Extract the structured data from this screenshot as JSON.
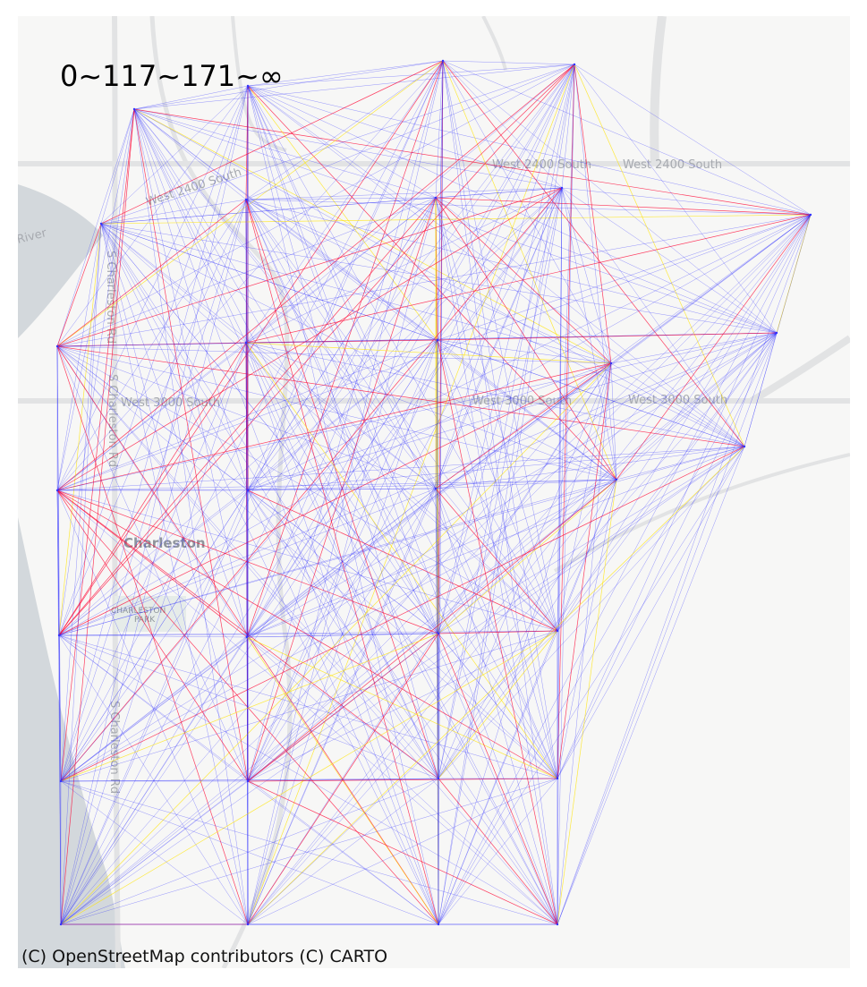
{
  "legend_text": "0~117~171~∞",
  "attribution": "(C) OpenStreetMap contributors (C) CARTO",
  "basemap": {
    "road_labels": [
      "West 2400 South",
      "West 2400 South",
      "West 2400 South",
      "West 3000 South",
      "West 3000 South",
      "West 3000 South",
      "S Charleston Rd",
      "S Charleston Rd",
      "S Charleston Rd"
    ],
    "place_labels": [
      "Charleston"
    ],
    "park_labels": [
      "CHARLESTON",
      "PARK"
    ],
    "water_labels": [
      "River"
    ],
    "colors": {
      "background": "#f7f7f6",
      "water": "#d3d8dc",
      "roads": "#e2e3e4",
      "park": "#e6ece9"
    }
  },
  "flow_map": {
    "color_classes": [
      {
        "range": "0~117",
        "color": "#1f1fff"
      },
      {
        "range": "117~171",
        "color": "#ffe400"
      },
      {
        "range": "171~∞",
        "color": "#ff0030"
      }
    ]
  },
  "colors": {
    "node": "#3333ff"
  }
}
